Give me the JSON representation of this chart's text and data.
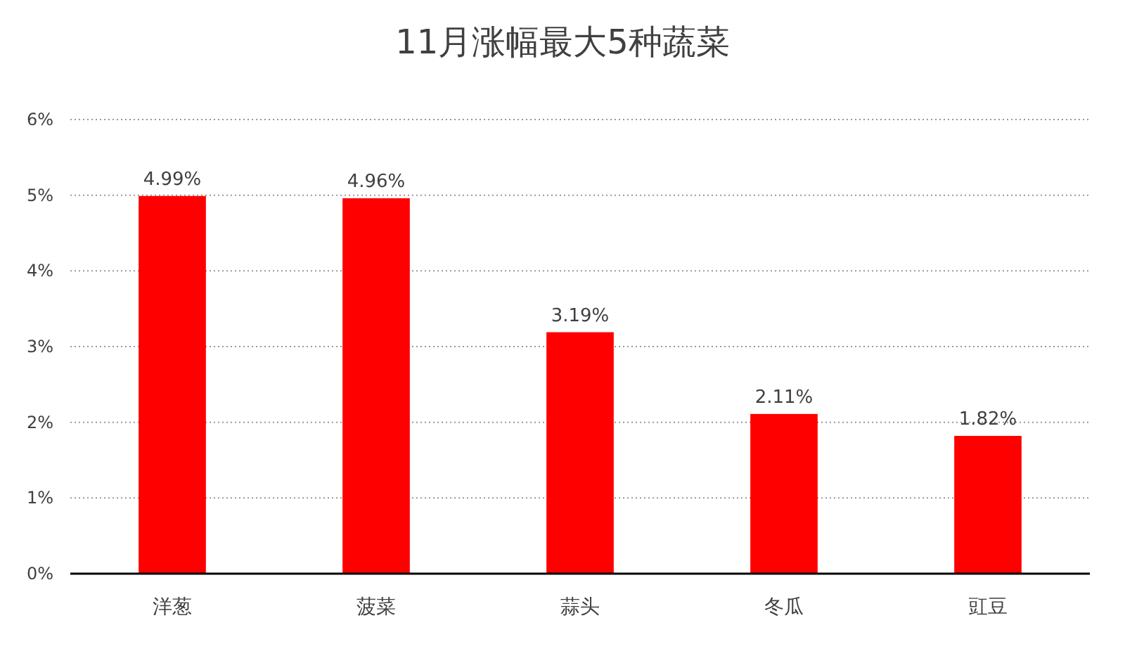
{
  "chart_data": {
    "type": "bar",
    "title": "11月涨幅最大5种蔬菜",
    "categories": [
      "洋葱",
      "菠菜",
      "蒜头",
      "冬瓜",
      "豇豆"
    ],
    "values": [
      4.99,
      4.96,
      3.19,
      2.11,
      1.82
    ],
    "value_labels": [
      "4.99%",
      "4.96%",
      "3.19%",
      "2.11%",
      "1.82%"
    ],
    "color": "#ff0000",
    "ylim": [
      0,
      6
    ],
    "yticks": [
      {
        "value": 0,
        "label": "0%"
      },
      {
        "value": 1,
        "label": "1%"
      },
      {
        "value": 2,
        "label": "2%"
      },
      {
        "value": 3,
        "label": "3%"
      },
      {
        "value": 4,
        "label": "4%"
      },
      {
        "value": 5,
        "label": "5%"
      },
      {
        "value": 6,
        "label": "6%"
      }
    ],
    "grid": "y"
  }
}
